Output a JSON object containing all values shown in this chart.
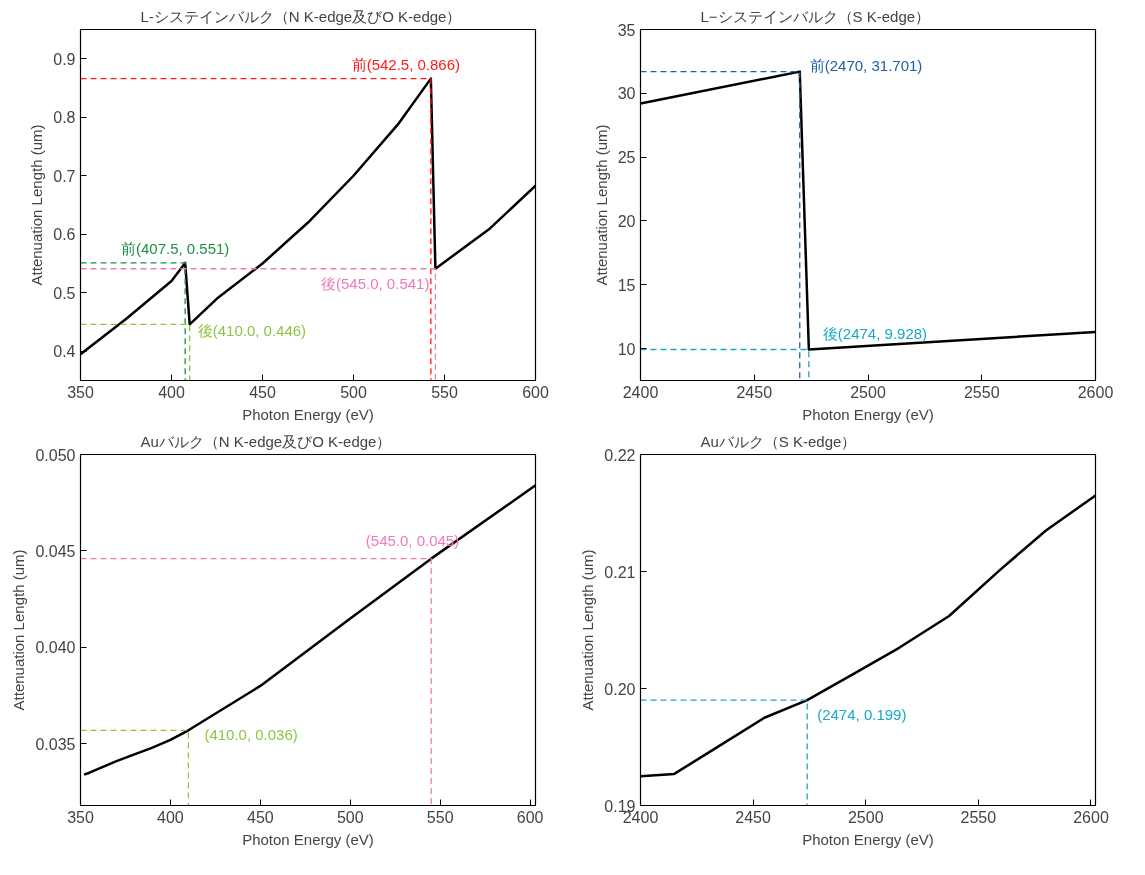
{
  "chart_data": [
    {
      "type": "line",
      "title": "L-システインバルク（N K-edge及びO K-edge）",
      "xlabel": "Photon Energy (eV)",
      "ylabel": "Attenuation Length (um)",
      "xlim": [
        350,
        600
      ],
      "xticks": [
        350,
        400,
        450,
        500,
        550,
        600
      ],
      "ylim": [
        0.35,
        0.95
      ],
      "yticks": [
        0.4,
        0.5,
        0.6,
        0.7,
        0.8,
        0.9
      ],
      "series": [
        {
          "color": "#000000",
          "x": [
            350,
            375,
            400,
            407.5,
            410,
            425,
            450,
            475,
            500,
            525,
            542.5,
            545,
            575,
            600
          ],
          "values": [
            0.395,
            0.455,
            0.52,
            0.551,
            0.446,
            0.49,
            0.55,
            0.62,
            0.7,
            0.79,
            0.866,
            0.541,
            0.61,
            0.683
          ]
        },
        {
          "color": "#1e8f44",
          "line_style": "dashed",
          "x": [
            350,
            407.5,
            407.5
          ],
          "values": [
            0.551,
            0.551,
            0.35
          ]
        },
        {
          "color": "#8cc63f",
          "line_style": "dashed",
          "x": [
            350,
            410,
            410
          ],
          "values": [
            0.446,
            0.446,
            0.35
          ]
        },
        {
          "color": "#ff1a1a",
          "line_style": "dashed",
          "x": [
            350,
            542.5,
            542.5
          ],
          "values": [
            0.866,
            0.866,
            0.35
          ]
        },
        {
          "color": "#f07ab8",
          "line_style": "dashed",
          "x": [
            350,
            545,
            545
          ],
          "values": [
            0.541,
            0.541,
            0.35
          ]
        }
      ],
      "annotations": [
        {
          "text": "前(407.5, 0.551)",
          "x": 407.5,
          "y": 0.551
        },
        {
          "text": "後(410.0, 0.446)",
          "x": 410,
          "y": 0.446
        },
        {
          "text": "前(542.5, 0.866)",
          "x": 542.5,
          "y": 0.866
        },
        {
          "text": "後(545.0, 0.541)",
          "x": 545,
          "y": 0.541
        }
      ]
    },
    {
      "type": "line",
      "title": "L−システインバルク（S K-edge）",
      "xlabel": "Photon Energy (eV)",
      "ylabel": "Attenuation Length (um)",
      "xlim": [
        2400,
        2600
      ],
      "xticks": [
        2400,
        2450,
        2500,
        2550,
        2600
      ],
      "ylim": [
        7.5,
        35
      ],
      "yticks": [
        10,
        15,
        20,
        25,
        30,
        35
      ],
      "series": [
        {
          "color": "#000000",
          "x": [
            2400,
            2470,
            2474,
            2600
          ],
          "values": [
            29.2,
            31.701,
            9.928,
            11.3
          ]
        },
        {
          "color": "#1f5fa8",
          "line_style": "dashed",
          "x": [
            2400,
            2470,
            2470
          ],
          "values": [
            31.701,
            31.701,
            7.5
          ]
        },
        {
          "color": "#1aa7c8",
          "line_style": "dashed",
          "x": [
            2400,
            2474,
            2474
          ],
          "values": [
            9.928,
            9.928,
            7.5
          ]
        }
      ],
      "annotations": [
        {
          "text": "前(2470, 31.701)",
          "x": 2470,
          "y": 31.701
        },
        {
          "text": "後(2474, 9.928)",
          "x": 2474,
          "y": 9.928
        }
      ]
    },
    {
      "type": "line",
      "title": "Auバルク（N K-edge及びO K-edge）",
      "xlabel": "Photon Energy (eV)",
      "ylabel": "Attenuation Length (um)",
      "xlim": [
        350,
        603
      ],
      "xticks": [
        350,
        400,
        450,
        500,
        550,
        600
      ],
      "ylim": [
        0.0318,
        0.05
      ],
      "yticks": [
        0.035,
        {
          "value": 0.04,
          "label": "0.040"
        },
        0.045,
        {
          "value": 0.05,
          "label": "0.050"
        }
      ],
      "series": [
        {
          "color": "#000000",
          "x": [
            352,
            355,
            370,
            390,
            400,
            410,
            450,
            500,
            545,
            603
          ],
          "values": [
            0.0334,
            0.0335,
            0.0341,
            0.0348,
            0.0352,
            0.0357,
            0.038,
            0.0415,
            0.0446,
            0.0484
          ]
        },
        {
          "color": "#8cc63f",
          "line_style": "dashed",
          "x": [
            350,
            410,
            410
          ],
          "values": [
            0.0357,
            0.0357,
            0.0318
          ]
        },
        {
          "color": "#f07ab8",
          "line_style": "dashed",
          "x": [
            350,
            545,
            545
          ],
          "values": [
            0.0446,
            0.0446,
            0.0318
          ]
        }
      ],
      "annotations": [
        {
          "text": "(410.0, 0.036)",
          "x": 410,
          "y": 0.0357
        },
        {
          "text": "(545.0, 0.045)",
          "x": 545,
          "y": 0.0446
        }
      ]
    },
    {
      "type": "line",
      "title": "Auバルク（S K-edge）",
      "xlabel": "Photon Energy (eV)",
      "ylabel": "Attenuation Length (um)",
      "xlim": [
        2400,
        2602
      ],
      "xticks": [
        2400,
        2450,
        2500,
        2550,
        2600
      ],
      "ylim": [
        0.19,
        0.22
      ],
      "yticks": [
        0.19,
        {
          "value": 0.2,
          "label": "0.20"
        },
        0.21,
        0.22
      ],
      "series": [
        {
          "color": "#000000",
          "x": [
            2400,
            2415,
            2430,
            2455,
            2474,
            2495,
            2515,
            2537,
            2560,
            2580,
            2602
          ],
          "values": [
            0.1925,
            0.1927,
            0.1945,
            0.1975,
            0.199,
            0.2013,
            0.2035,
            0.2062,
            0.2102,
            0.2135,
            0.2165
          ]
        },
        {
          "color": "#1aa7c8",
          "line_style": "dashed",
          "x": [
            2400,
            2474,
            2474
          ],
          "values": [
            0.199,
            0.199,
            0.19
          ]
        }
      ],
      "annotations": [
        {
          "text": "(2474, 0.199)",
          "x": 2474,
          "y": 0.199
        }
      ]
    }
  ]
}
